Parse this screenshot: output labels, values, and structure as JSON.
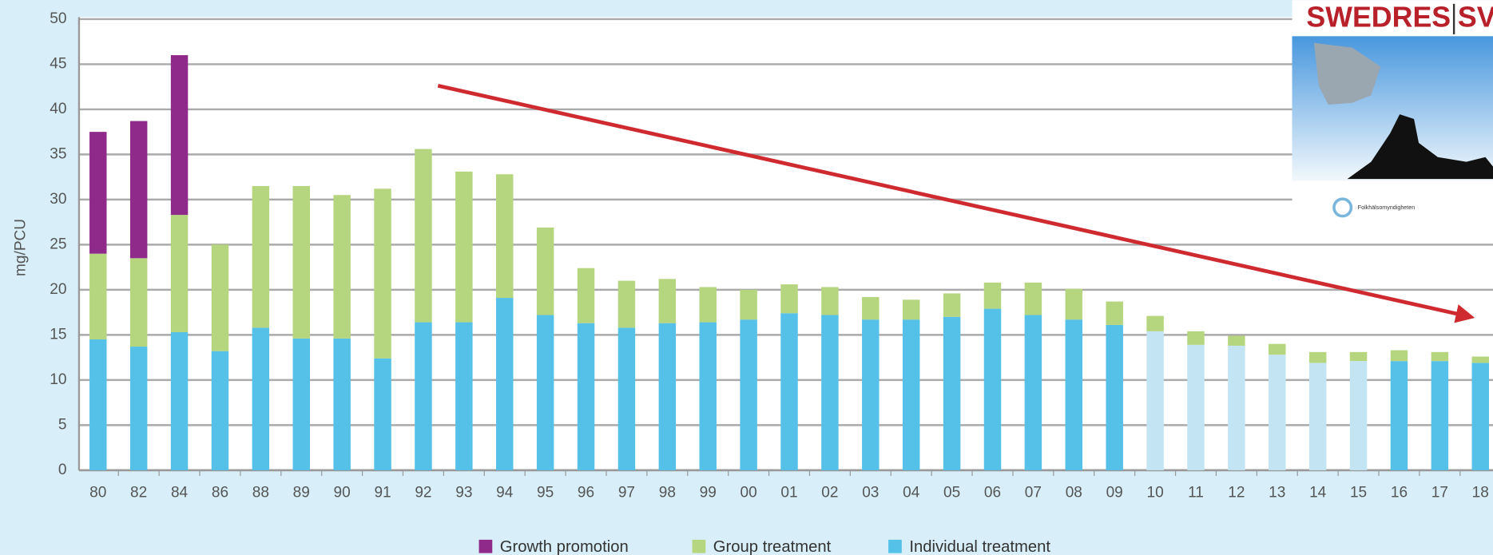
{
  "chart_data": {
    "type": "stacked_bar",
    "y_label": "mg/PCU",
    "categories": [
      "80",
      "82",
      "84",
      "86",
      "88",
      "89",
      "90",
      "91",
      "92",
      "93",
      "94",
      "95",
      "96",
      "97",
      "98",
      "99",
      "00",
      "01",
      "02",
      "03",
      "04",
      "05",
      "06",
      "07",
      "08",
      "09",
      "10",
      "11",
      "12",
      "13",
      "14",
      "15",
      "16",
      "17",
      "18"
    ],
    "series": [
      {
        "name": "Individual treatment",
        "color": "#55c0e8",
        "point_colors": [
          "#55c0e8",
          "#55c0e8",
          "#55c0e8",
          "#55c0e8",
          "#55c0e8",
          "#55c0e8",
          "#55c0e8",
          "#55c0e8",
          "#55c0e8",
          "#55c0e8",
          "#55c0e8",
          "#55c0e8",
          "#55c0e8",
          "#55c0e8",
          "#55c0e8",
          "#55c0e8",
          "#55c0e8",
          "#55c0e8",
          "#55c0e8",
          "#55c0e8",
          "#55c0e8",
          "#55c0e8",
          "#55c0e8",
          "#55c0e8",
          "#55c0e8",
          "#55c0e8",
          "#c3e5f3",
          "#c3e5f3",
          "#c3e5f3",
          "#c3e5f3",
          "#c3e5f3",
          "#c3e5f3",
          "#55c0e8",
          "#55c0e8",
          "#55c0e8"
        ],
        "values": [
          14.5,
          13.7,
          15.3,
          13.2,
          15.8,
          14.6,
          14.6,
          12.4,
          16.4,
          16.4,
          19.1,
          17.2,
          16.3,
          15.8,
          16.3,
          16.4,
          16.7,
          17.4,
          17.2,
          16.7,
          16.7,
          17,
          17.9,
          17.2,
          16.7,
          16.1,
          15.4,
          13.9,
          13.8,
          12.8,
          11.9,
          12.1,
          12.1,
          12.1,
          11.9
        ]
      },
      {
        "name": "Group treatment",
        "color": "#b5d67e",
        "values": [
          9.5,
          9.8,
          13,
          11.8,
          15.7,
          16.9,
          15.9,
          18.8,
          19.2,
          16.7,
          13.7,
          9.7,
          6.1,
          5.2,
          4.9,
          3.9,
          3.3,
          3.2,
          3.1,
          2.5,
          2.2,
          2.6,
          2.9,
          3.6,
          3.4,
          2.6,
          1.7,
          1.5,
          1.1,
          1.2,
          1.2,
          1,
          1.2,
          1,
          0.7
        ]
      },
      {
        "name": "Growth promotion",
        "color": "#8f2a8a",
        "values": [
          13.5,
          15.2,
          17.7,
          null,
          null,
          null,
          null,
          null,
          null,
          null,
          null,
          null,
          null,
          null,
          null,
          null,
          null,
          null,
          null,
          null,
          null,
          null,
          null,
          null,
          null,
          null,
          null,
          null,
          null,
          null,
          null,
          null,
          null,
          null,
          null
        ]
      }
    ],
    "ylim": [
      0,
      50
    ],
    "yticks": [
      0,
      5,
      10,
      15,
      20,
      25,
      30,
      35,
      40,
      45,
      50
    ],
    "grid": true,
    "inset": {
      "title_left": "SWEDRES",
      "title_right": "SV",
      "logo_text": "Folkhälsomyndigheten"
    }
  }
}
